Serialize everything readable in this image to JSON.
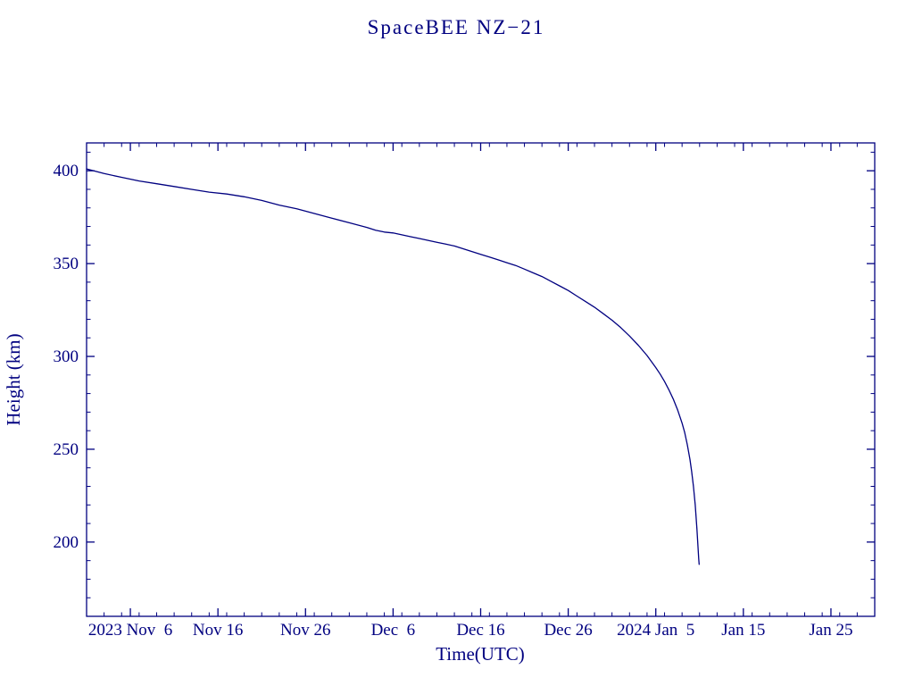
{
  "colors": {
    "ink": "#000080",
    "background": "#ffffff"
  },
  "chart_data": {
    "type": "line",
    "title": "SpaceBEE NZ−21",
    "xlabel": "Time(UTC)",
    "ylabel": "Height (km)",
    "grid": false,
    "legend": "none",
    "line_color": "#000080",
    "x_unit": "days since first tick epoch (2023 Nov 1)",
    "xlim_days": [
      0,
      90
    ],
    "ylim": [
      160,
      415
    ],
    "y_major_ticks": [
      200,
      250,
      300,
      350,
      400
    ],
    "y_minor_step": 10,
    "x_minor_step": 2,
    "x_ticks": [
      {
        "day": 5,
        "label": "2023 Nov  6"
      },
      {
        "day": 15,
        "label": "Nov 16"
      },
      {
        "day": 25,
        "label": "Nov 26"
      },
      {
        "day": 35,
        "label": "Dec  6"
      },
      {
        "day": 45,
        "label": "Dec 16"
      },
      {
        "day": 55,
        "label": "Dec 26"
      },
      {
        "day": 65,
        "label": "2024 Jan  5"
      },
      {
        "day": 75,
        "label": "Jan 15"
      },
      {
        "day": 85,
        "label": "Jan 25"
      }
    ],
    "series": [
      {
        "name": "Height (km)",
        "points": [
          [
            0,
            401
          ],
          [
            2,
            398.5
          ],
          [
            4,
            396.5
          ],
          [
            6,
            394.5
          ],
          [
            8,
            393
          ],
          [
            10,
            391.5
          ],
          [
            12,
            390
          ],
          [
            14,
            388.5
          ],
          [
            16,
            387.5
          ],
          [
            18,
            386
          ],
          [
            20,
            384
          ],
          [
            22,
            381.5
          ],
          [
            24,
            379.5
          ],
          [
            26,
            377
          ],
          [
            28,
            374.5
          ],
          [
            30,
            372
          ],
          [
            32,
            369.5
          ],
          [
            33,
            368
          ],
          [
            34,
            367
          ],
          [
            35,
            366.5
          ],
          [
            36,
            365.5
          ],
          [
            37,
            364.5
          ],
          [
            38,
            363.5
          ],
          [
            39,
            362.5
          ],
          [
            40,
            361.5
          ],
          [
            41,
            360.5
          ],
          [
            42,
            359.5
          ],
          [
            43,
            358
          ],
          [
            44,
            356.5
          ],
          [
            45,
            355
          ],
          [
            46,
            353.5
          ],
          [
            47,
            352
          ],
          [
            48,
            350.5
          ],
          [
            49,
            349
          ],
          [
            50,
            347
          ],
          [
            51,
            345
          ],
          [
            52,
            343
          ],
          [
            53,
            340.5
          ],
          [
            54,
            338
          ],
          [
            55,
            335.5
          ],
          [
            56,
            332.5
          ],
          [
            57,
            329.5
          ],
          [
            58,
            326.5
          ],
          [
            59,
            323
          ],
          [
            60,
            319.5
          ],
          [
            61,
            315.5
          ],
          [
            62,
            311
          ],
          [
            63,
            306
          ],
          [
            64,
            300.5
          ],
          [
            65,
            294
          ],
          [
            65.5,
            290.5
          ],
          [
            66,
            286.5
          ],
          [
            66.5,
            282
          ],
          [
            67,
            277
          ],
          [
            67.5,
            271
          ],
          [
            68,
            264
          ],
          [
            68.3,
            259
          ],
          [
            68.6,
            252.5
          ],
          [
            68.9,
            244.5
          ],
          [
            69.1,
            238
          ],
          [
            69.3,
            230
          ],
          [
            69.5,
            220
          ],
          [
            69.7,
            207
          ],
          [
            69.8,
            199
          ],
          [
            69.9,
            191
          ],
          [
            69.95,
            188
          ]
        ]
      }
    ]
  }
}
